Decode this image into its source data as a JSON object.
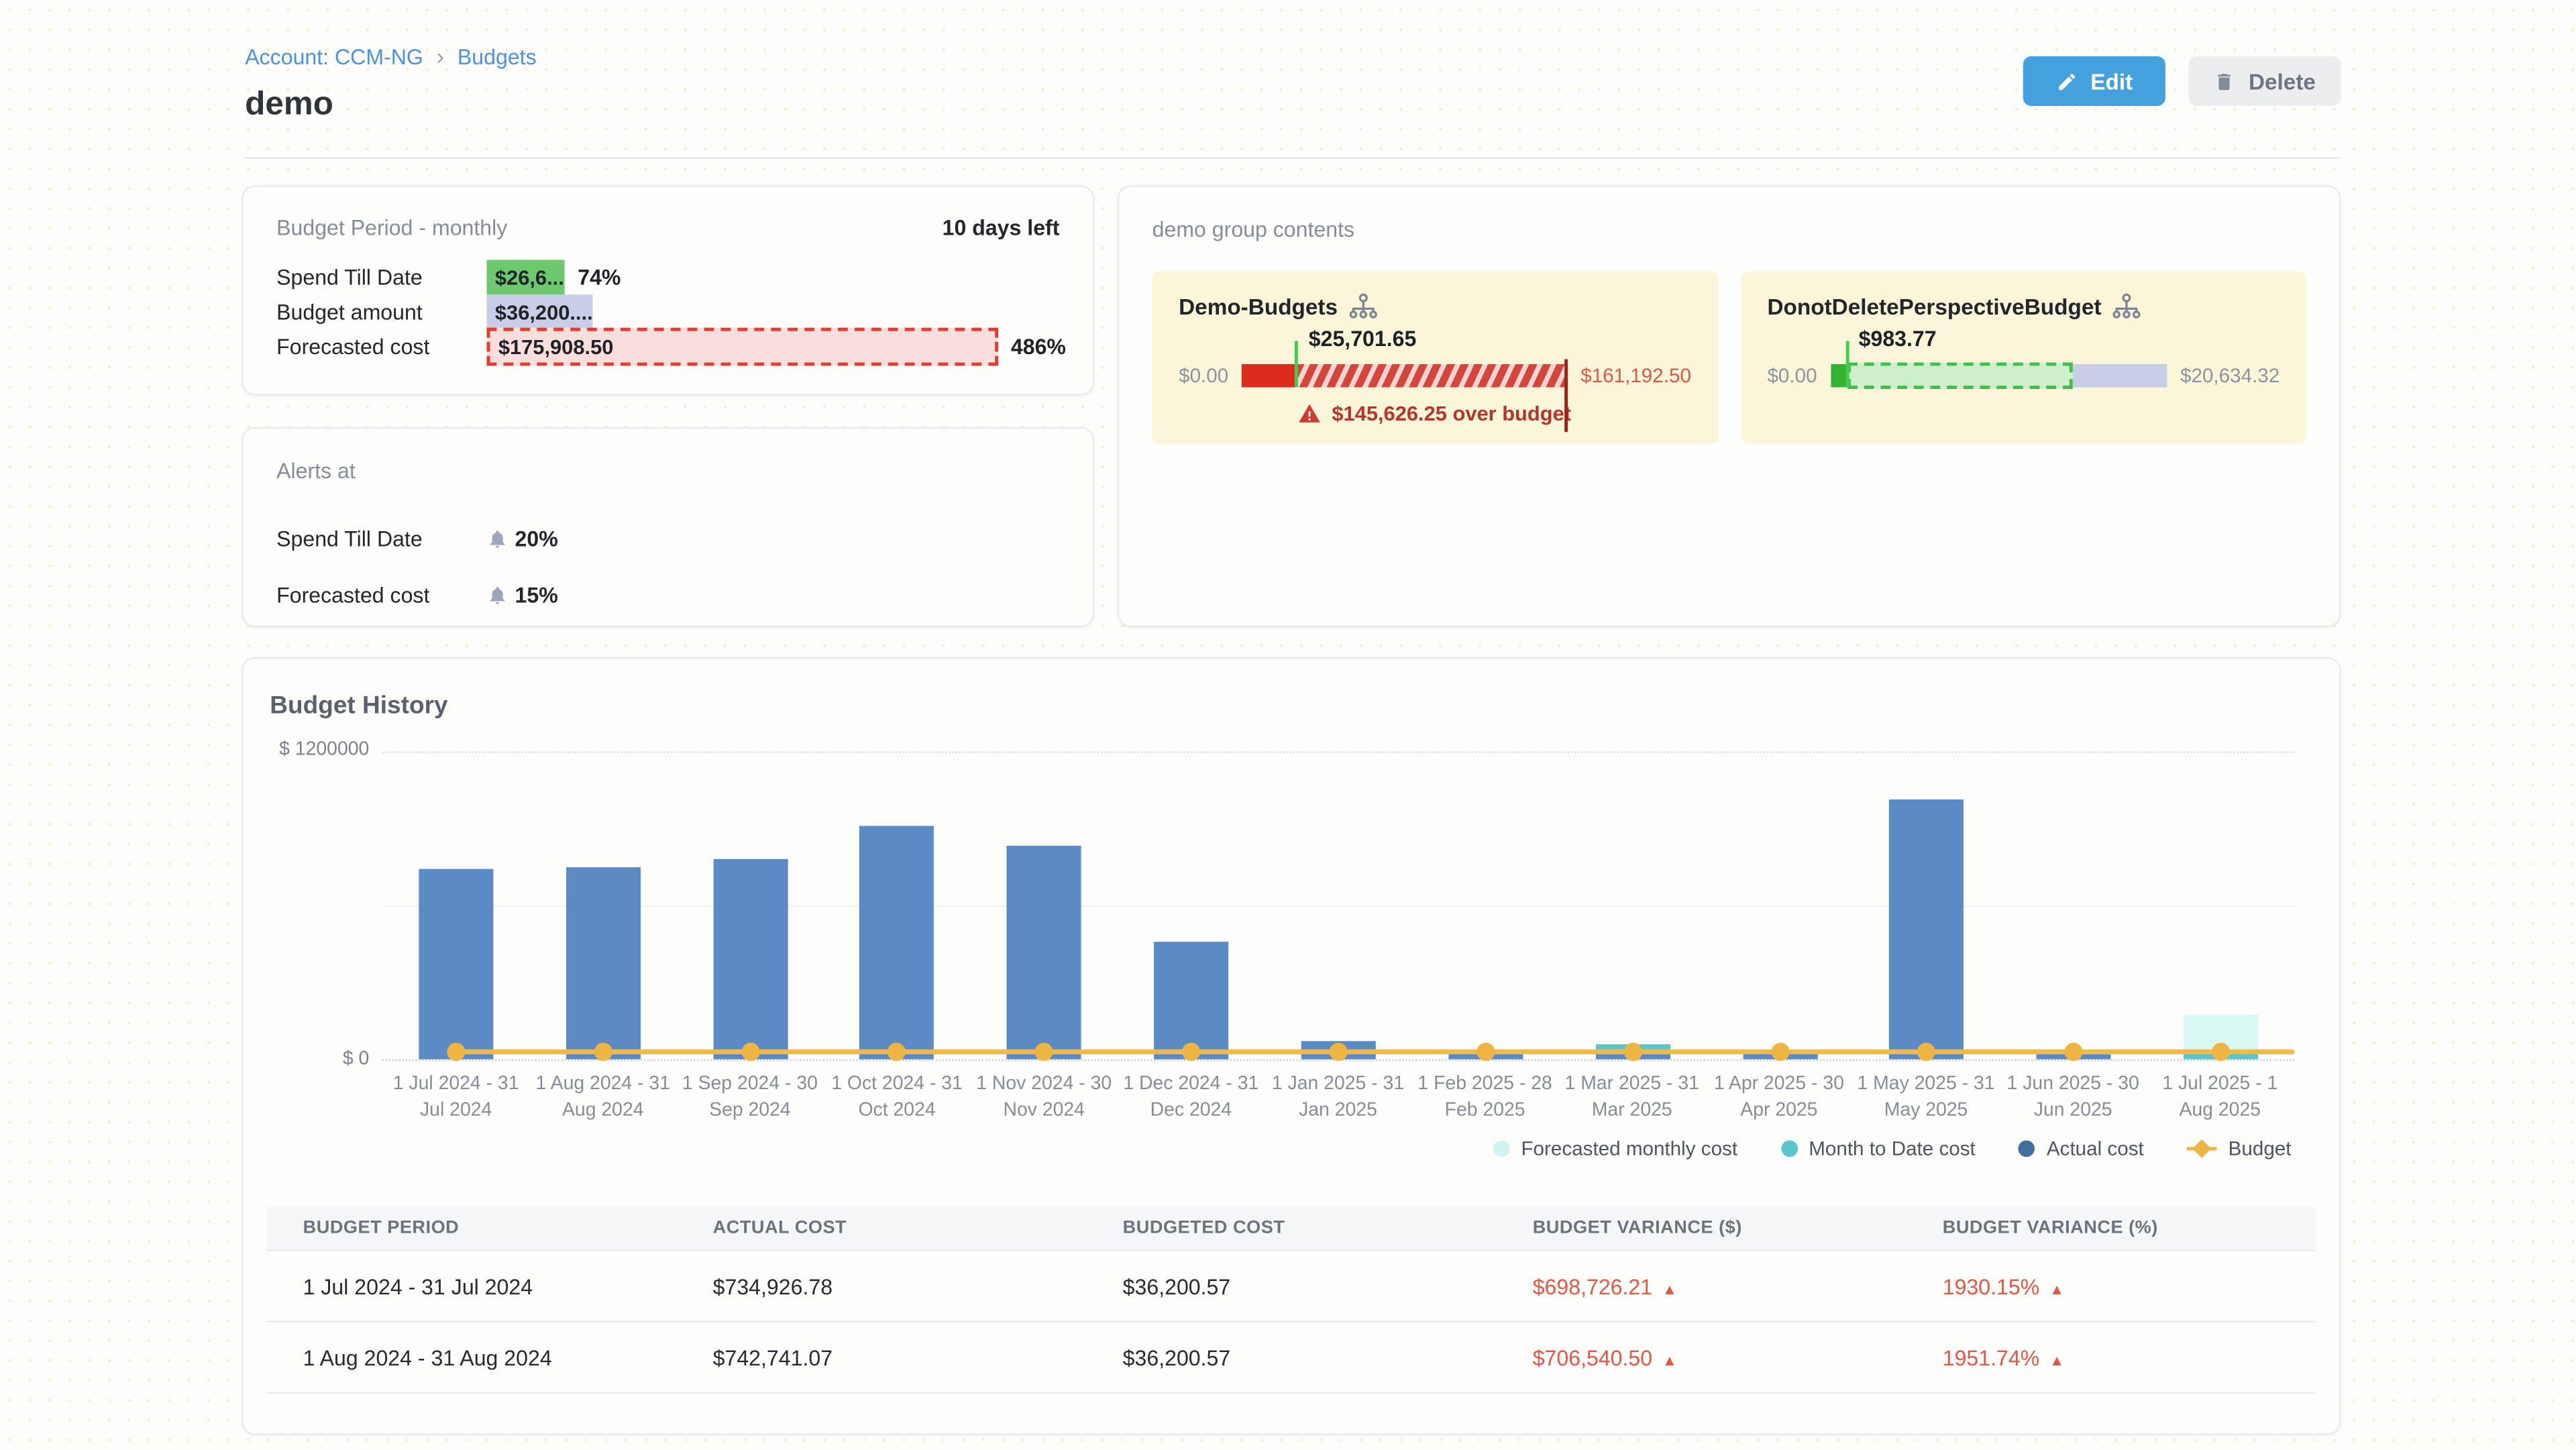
{
  "breadcrumb": {
    "account_link": "Account: CCM-NG",
    "separator": "›",
    "current": "Budgets"
  },
  "page_title": "demo",
  "toolbar": {
    "edit_label": "Edit",
    "delete_label": "Delete"
  },
  "budget_period_card": {
    "title": "Budget Period - monthly",
    "days_left": "10 days left",
    "rows": [
      {
        "label": "Spend Till Date",
        "value": "$26,6...",
        "percent_label": "74%",
        "percent_value": 74,
        "style": "green"
      },
      {
        "label": "Budget amount",
        "value": "$36,200....",
        "percent_label": "",
        "percent_value": 100,
        "style": "lavender"
      },
      {
        "label": "Forecasted cost",
        "value": "$175,908.50",
        "percent_label": "486%",
        "percent_value": 486,
        "style": "pink"
      }
    ]
  },
  "alerts_card": {
    "title": "Alerts at",
    "rows": [
      {
        "label": "Spend Till Date",
        "value": "20%"
      },
      {
        "label": "Forecasted cost",
        "value": "15%"
      }
    ]
  },
  "group_card": {
    "title": "demo group contents",
    "items": [
      {
        "name": "Demo-Budgets",
        "marker_value": "$25,701.65",
        "min_label": "$0.00",
        "max_label": "$161,192.50",
        "max_label_color": "#e0554a",
        "type": "over",
        "solid_pct": 17,
        "marker_pct": 17,
        "alert": "$145,626.25 over budget"
      },
      {
        "name": "DonotDeletePerspectiveBudget",
        "marker_value": "$983.77",
        "min_label": "$0.00",
        "max_label": "$20,634.32",
        "max_label_color": "#8d939e",
        "type": "within",
        "solid_pct": 5,
        "marker_pct": 5,
        "dashed_end_pct": 72
      }
    ]
  },
  "budget_history": {
    "title": "Budget History",
    "chart_data": {
      "type": "bar",
      "title": "Budget History",
      "y_top_label": "$ 1200000",
      "y_zero_label": "$ 0",
      "y_max": 1200000,
      "grid": true,
      "legend_position": "bottom-right",
      "categories": [
        "1 Jul 2024 - 31 Jul 2024",
        "1 Aug 2024 - 31 Aug 2024",
        "1 Sep 2024 - 30 Sep 2024",
        "1 Oct 2024 - 31 Oct 2024",
        "1 Nov 2024 - 30 Nov 2024",
        "1 Dec 2024 - 31 Dec 2024",
        "1 Jan 2025 - 31 Jan 2025",
        "1 Feb 2025 - 28 Feb 2025",
        "1 Mar 2025 - 31 Mar 2025",
        "1 Apr 2025 - 30 Apr 2025",
        "1 May 2025 - 31 May 2025",
        "1 Jun 2025 - 30 Jun 2025",
        "1 Jul 2025 - 1 Aug 2025"
      ],
      "series": [
        {
          "name": "Actual cost",
          "color": "#5b8ac4",
          "values": [
            734926.78,
            742741.07,
            776000,
            908000,
            830000,
            454000,
            73000,
            30000,
            57000,
            30000,
            1010000,
            22000,
            0
          ]
        },
        {
          "name": "Forecasted monthly cost",
          "color": "#d9f8f4",
          "values": [
            0,
            0,
            0,
            0,
            0,
            0,
            0,
            0,
            0,
            0,
            0,
            0,
            175908.5
          ]
        },
        {
          "name": "Month to Date cost",
          "color": "#58c6cc",
          "values": [
            0,
            0,
            0,
            0,
            0,
            0,
            0,
            0,
            55000,
            0,
            0,
            0,
            26600
          ]
        },
        {
          "name": "Budget",
          "color": "#f0ba45",
          "values": [
            36200,
            36200,
            36200,
            36200,
            36200,
            36200,
            36200,
            36200,
            36200,
            36200,
            36200,
            36200,
            36200
          ]
        }
      ],
      "budget_line_value": 36200,
      "legend": [
        {
          "label": "Forecasted monthly cost",
          "color": "#d2f4f0",
          "marker": "circle"
        },
        {
          "label": "Month to Date cost",
          "color": "#58c6cc",
          "marker": "circle"
        },
        {
          "label": "Actual cost",
          "color": "#41709f",
          "marker": "circle"
        },
        {
          "label": "Budget",
          "color": "#efb543",
          "marker": "diamond"
        }
      ]
    }
  },
  "history_table": {
    "headers": [
      "BUDGET PERIOD",
      "ACTUAL COST",
      "BUDGETED COST",
      "BUDGET VARIANCE ($)",
      "BUDGET VARIANCE (%)"
    ],
    "rows": [
      {
        "period": "1 Jul 2024 - 31 Jul 2024",
        "actual": "$734,926.78",
        "budgeted": "$36,200.57",
        "variance_usd": "$698,726.21",
        "variance_pct": "1930.15%",
        "direction": "up"
      },
      {
        "period": "1 Aug 2024 - 31 Aug 2024",
        "actual": "$742,741.07",
        "budgeted": "$36,200.57",
        "variance_usd": "$706,540.50",
        "variance_pct": "1951.74%",
        "direction": "up"
      }
    ]
  }
}
